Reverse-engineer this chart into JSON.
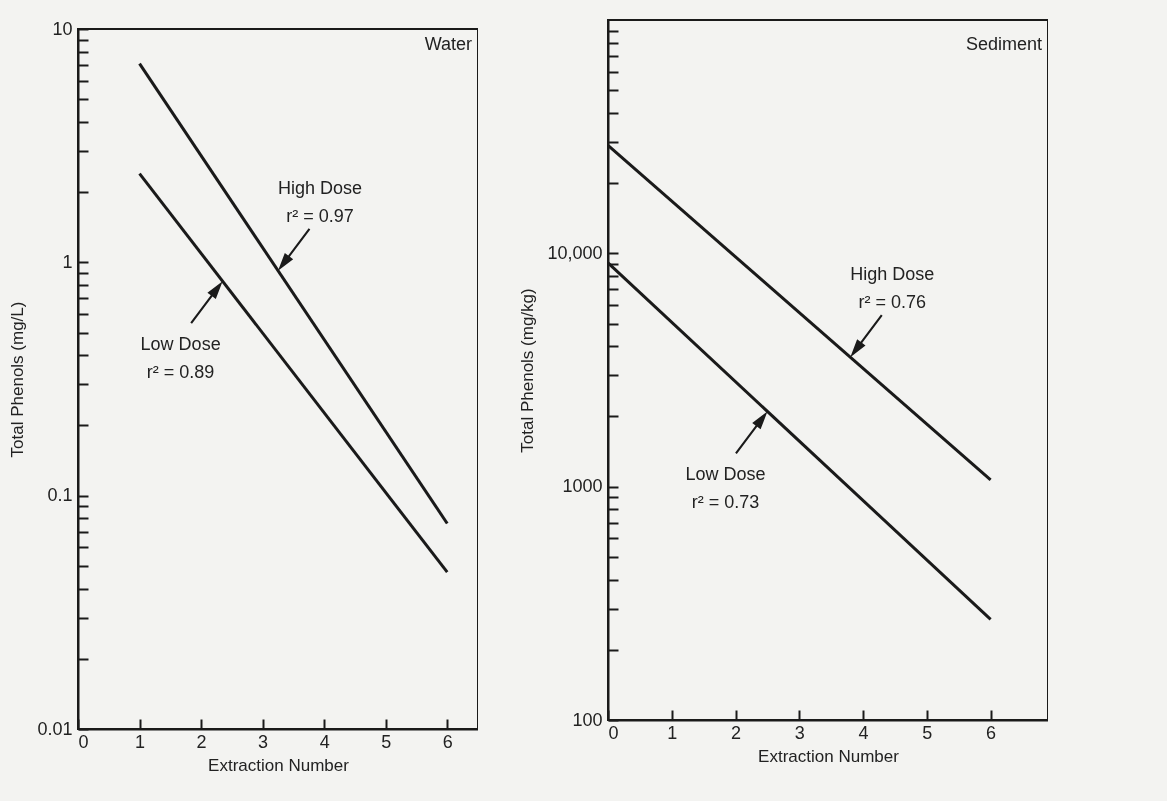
{
  "chart_data": [
    {
      "type": "line",
      "title": "Water",
      "xlabel": "Extraction Number",
      "ylabel": "Total Phenols (mg/L)",
      "log": true,
      "xlim": [
        0,
        6.5
      ],
      "xticks": [
        0,
        1,
        2,
        3,
        4,
        5,
        6
      ],
      "ylim": [
        0.01,
        10
      ],
      "yticks": [
        0.01,
        {
          "value": 0.02,
          "label": null
        },
        {
          "value": 0.03,
          "label": null
        },
        {
          "value": 0.04,
          "label": null
        },
        {
          "value": 0.05,
          "label": null
        },
        {
          "value": 0.06,
          "label": null
        },
        {
          "value": 0.07,
          "label": null
        },
        {
          "value": 0.08,
          "label": null
        },
        {
          "value": 0.09,
          "label": null
        },
        0.1,
        {
          "value": 0.2,
          "label": null
        },
        {
          "value": 0.3,
          "label": null
        },
        {
          "value": 0.4,
          "label": null
        },
        {
          "value": 0.5,
          "label": null
        },
        {
          "value": 0.6,
          "label": null
        },
        {
          "value": 0.7,
          "label": null
        },
        {
          "value": 0.8,
          "label": null
        },
        {
          "value": 0.9,
          "label": null
        },
        1,
        {
          "value": 2,
          "label": null
        },
        {
          "value": 3,
          "label": null
        },
        {
          "value": 4,
          "label": null
        },
        {
          "value": 5,
          "label": null
        },
        {
          "value": 6,
          "label": null
        },
        {
          "value": 7,
          "label": null
        },
        {
          "value": 8,
          "label": null
        },
        {
          "value": 9,
          "label": null
        },
        10
      ],
      "series": [
        {
          "color": "#1a1a1a",
          "x": [
            1,
            6
          ],
          "values": [
            7.1,
            0.076
          ]
        },
        {
          "color": "#1a1a1a",
          "x": [
            1,
            6
          ],
          "values": [
            2.4,
            0.047
          ]
        }
      ],
      "annotations": [
        {
          "text": "High Dose\nr² = 0.97",
          "x": 3.25,
          "y": 0.92
        },
        {
          "text": "Low Dose\nr² = 0.89",
          "x": 2.35,
          "y": 0.83
        }
      ]
    },
    {
      "type": "line",
      "title": "Sediment",
      "xlabel": "Extraction Number",
      "ylabel": "Total Phenols (mg/kg)",
      "log": true,
      "xlim": [
        0,
        6.9
      ],
      "xticks": [
        0,
        1,
        2,
        3,
        4,
        5,
        6
      ],
      "ylim": [
        100,
        100000
      ],
      "yticks": [
        100,
        {
          "value": 200,
          "label": null
        },
        {
          "value": 300,
          "label": null
        },
        {
          "value": 400,
          "label": null
        },
        {
          "value": 500,
          "label": null
        },
        {
          "value": 600,
          "label": null
        },
        {
          "value": 700,
          "label": null
        },
        {
          "value": 800,
          "label": null
        },
        {
          "value": 900,
          "label": null
        },
        1000,
        {
          "value": 2000,
          "label": null
        },
        {
          "value": 3000,
          "label": null
        },
        {
          "value": 4000,
          "label": null
        },
        {
          "value": 5000,
          "label": null
        },
        {
          "value": 6000,
          "label": null
        },
        {
          "value": 7000,
          "label": null
        },
        {
          "value": 8000,
          "label": null
        },
        {
          "value": 9000,
          "label": null
        },
        {
          "value": 10000,
          "label": "10,000"
        },
        {
          "value": 20000,
          "label": null
        },
        {
          "value": 30000,
          "label": null
        },
        {
          "value": 40000,
          "label": null
        },
        {
          "value": 50000,
          "label": null
        },
        {
          "value": 60000,
          "label": null
        },
        {
          "value": 70000,
          "label": null
        },
        {
          "value": 80000,
          "label": null
        },
        {
          "value": 90000,
          "label": null
        }
      ],
      "series": [
        {
          "color": "#1a1a1a",
          "x": [
            0,
            6
          ],
          "values": [
            29000,
            1070
          ]
        },
        {
          "color": "#1a1a1a",
          "x": [
            0,
            6
          ],
          "values": [
            9100,
            270
          ]
        }
      ],
      "annotations": [
        {
          "text": "High Dose\nr² = 0.76",
          "x": 3.8,
          "y": 3590
        },
        {
          "text": "Low Dose\nr² = 0.73",
          "x": 2.5,
          "y": 2100
        }
      ]
    }
  ]
}
